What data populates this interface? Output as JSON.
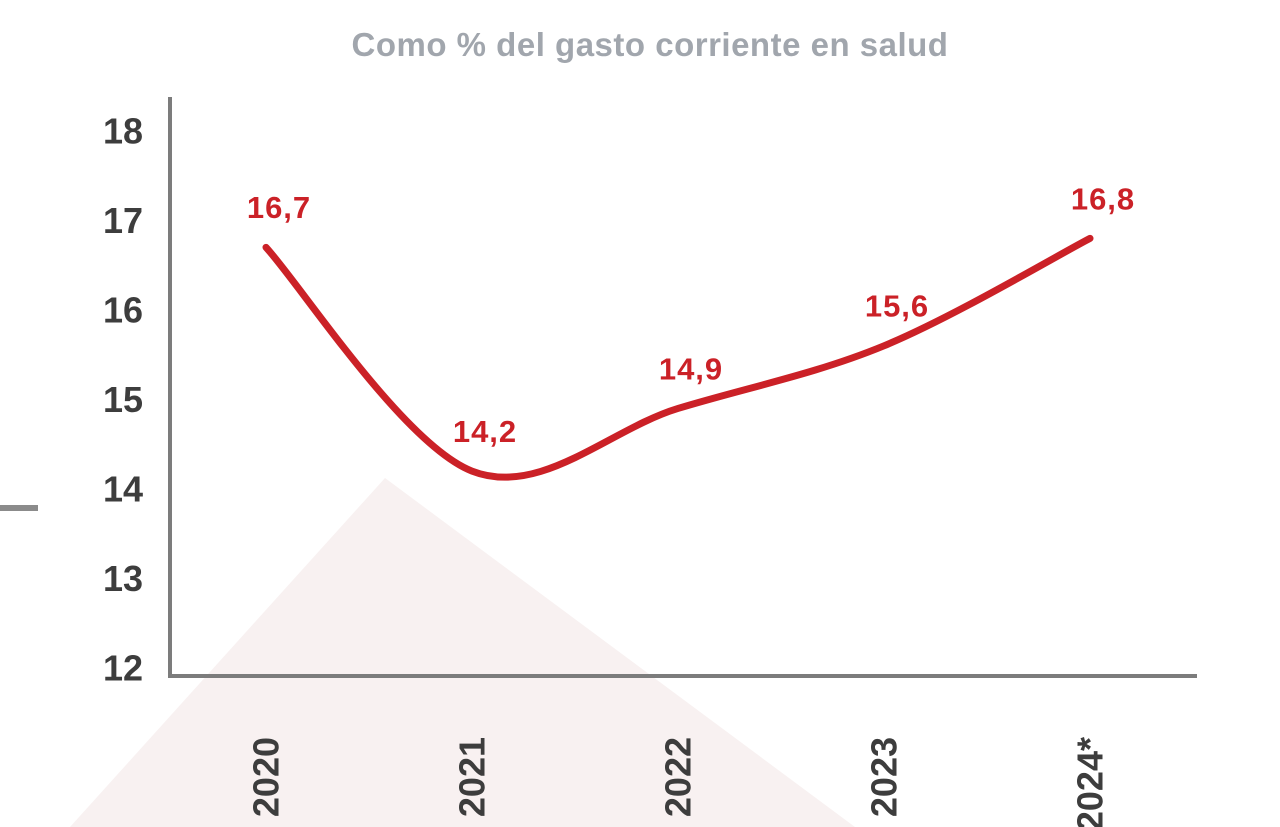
{
  "chart_data": {
    "type": "line",
    "title": "Como % del gasto corriente en salud",
    "categories": [
      "2020",
      "2021",
      "2022",
      "2023",
      "2024*"
    ],
    "series": [
      {
        "name": "Como % del gasto corriente en salud",
        "values": [
          16.7,
          14.2,
          14.9,
          15.6,
          16.8
        ],
        "point_labels": [
          "16,7",
          "14,2",
          "14,9",
          "15,6",
          "16,8"
        ],
        "color": "#cb2127"
      }
    ],
    "xlabel": "",
    "ylabel": "",
    "ylim": [
      12,
      18
    ],
    "y_ticks": [
      12,
      13,
      14,
      15,
      16,
      17,
      18
    ],
    "x_tick_rotation": -90,
    "grid": false,
    "legend": false,
    "line_smooth": true,
    "decimal_separator": ","
  },
  "styles": {
    "title_color": "#a1a6ad",
    "axis_line_color": "#7c7c7c",
    "tick_label_color": "#3d3d3d",
    "watermark_color": "#f8f1f1",
    "left_dash_color": "#8b8b8b"
  }
}
